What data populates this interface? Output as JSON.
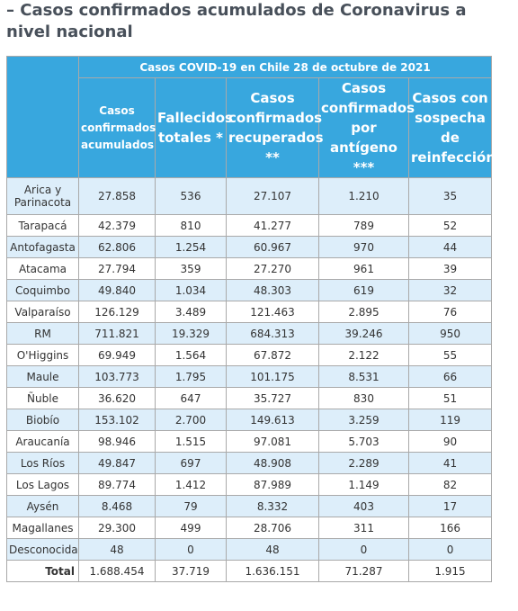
{
  "header": {
    "title": "– Casos confirmados acumulados de Coronavirus a nivel nacional"
  },
  "table": {
    "caption": "Casos COVID-19 en Chile 28 de octubre de 2021",
    "columns": [
      "Casos confirmados acumulados",
      "Fallecidos totales *",
      "Casos confirmados recuperados **",
      "Casos confirmados por antígeno ***",
      "Casos con sospecha de reinfección"
    ],
    "rows": [
      [
        "Arica y Parinacota",
        "27.858",
        "536",
        "27.107",
        "1.210",
        "35"
      ],
      [
        "Tarapacá",
        "42.379",
        "810",
        "41.277",
        "789",
        "52"
      ],
      [
        "Antofagasta",
        "62.806",
        "1.254",
        "60.967",
        "970",
        "44"
      ],
      [
        "Atacama",
        "27.794",
        "359",
        "27.270",
        "961",
        "39"
      ],
      [
        "Coquimbo",
        "49.840",
        "1.034",
        "48.303",
        "619",
        "32"
      ],
      [
        "Valparaíso",
        "126.129",
        "3.489",
        "121.463",
        "2.895",
        "76"
      ],
      [
        "RM",
        "711.821",
        "19.329",
        "684.313",
        "39.246",
        "950"
      ],
      [
        "O'Higgins",
        "69.949",
        "1.564",
        "67.872",
        "2.122",
        "55"
      ],
      [
        "Maule",
        "103.773",
        "1.795",
        "101.175",
        "8.531",
        "66"
      ],
      [
        "Ñuble",
        "36.620",
        "647",
        "35.727",
        "830",
        "51"
      ],
      [
        "Biobío",
        "153.102",
        "2.700",
        "149.613",
        "3.259",
        "119"
      ],
      [
        "Araucanía",
        "98.946",
        "1.515",
        "97.081",
        "5.703",
        "90"
      ],
      [
        "Los Ríos",
        "49.847",
        "697",
        "48.908",
        "2.289",
        "41"
      ],
      [
        "Los Lagos",
        "89.774",
        "1.412",
        "87.989",
        "1.149",
        "82"
      ],
      [
        "Aysén",
        "8.468",
        "79",
        "8.332",
        "403",
        "17"
      ],
      [
        "Magallanes",
        "29.300",
        "499",
        "28.706",
        "311",
        "166"
      ],
      [
        "Desconocida",
        "48",
        "0",
        "48",
        "0",
        "0"
      ],
      [
        "Total",
        "1.688.454",
        "37.719",
        "1.636.151",
        "71.287",
        "1.915"
      ]
    ]
  }
}
